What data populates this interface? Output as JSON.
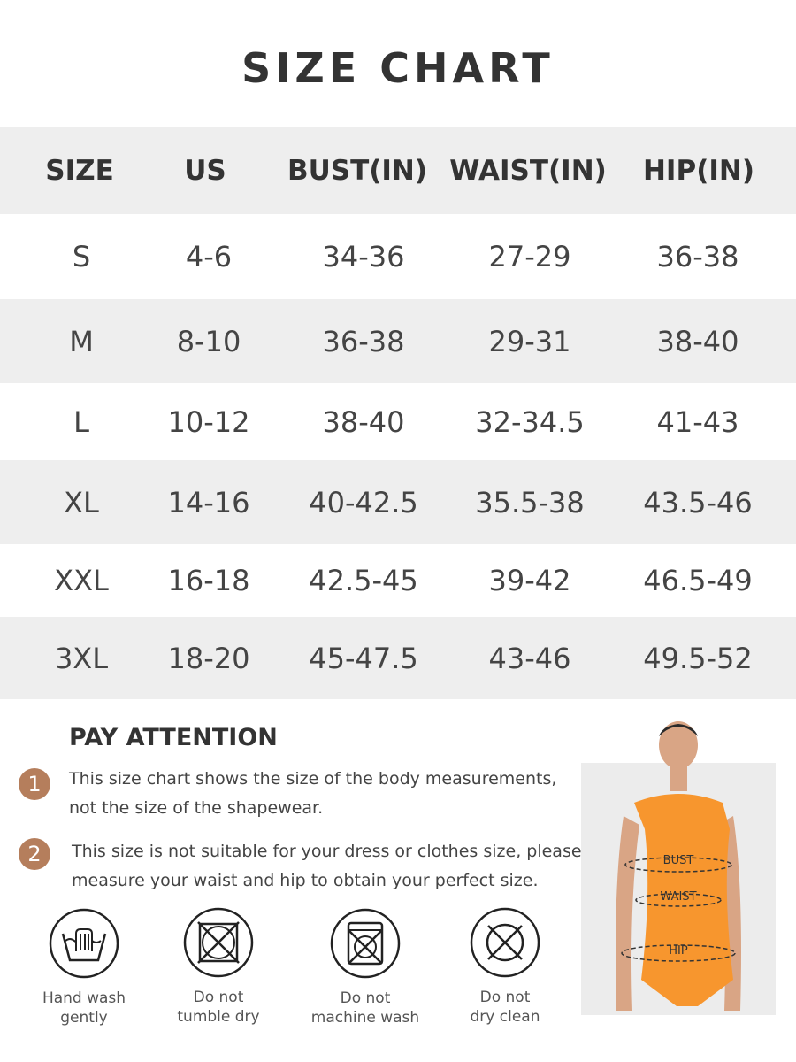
{
  "title": "SIZE CHART",
  "table": {
    "headers": [
      "SIZE",
      "US",
      "BUST(IN)",
      "WAIST(IN)",
      "HIP(IN)"
    ],
    "rows": [
      [
        "S",
        "4-6",
        "34-36",
        "27-29",
        "36-38"
      ],
      [
        "M",
        "8-10",
        "36-38",
        "29-31",
        "38-40"
      ],
      [
        "L",
        "10-12",
        "38-40",
        "32-34.5",
        "41-43"
      ],
      [
        "XL",
        "14-16",
        "40-42.5",
        "35.5-38",
        "43.5-46"
      ],
      [
        "XXL",
        "16-18",
        "42.5-45",
        "39-42",
        "46.5-49"
      ],
      [
        "3XL",
        "18-20",
        "45-47.5",
        "43-46",
        "49.5-52"
      ]
    ]
  },
  "attention": {
    "heading": "PAY ATTENTION",
    "notes": [
      {
        "num": "1",
        "line1": "This size chart shows the size of the body measurements,",
        "line2": "not the size of the shapewear."
      },
      {
        "num": "2",
        "line1": "This size is not suitable for your dress or clothes size, please",
        "line2": "measure your waist and hip to obtain your perfect size."
      }
    ],
    "accent": "#b57e5c"
  },
  "care": [
    {
      "icon": "hand-wash-icon",
      "line1": "Hand wash",
      "line2": "gently"
    },
    {
      "icon": "no-tumble-dry-icon",
      "line1": "Do not",
      "line2": "tumble dry"
    },
    {
      "icon": "no-machine-wash-icon",
      "line1": "Do not",
      "line2": "machine wash"
    },
    {
      "icon": "no-dry-clean-icon",
      "line1": "Do not",
      "line2": "dry clean"
    }
  ],
  "model": {
    "labels": [
      "BUST",
      "WAIST",
      "HIP"
    ],
    "swimsuit_color": "#f7962e"
  }
}
